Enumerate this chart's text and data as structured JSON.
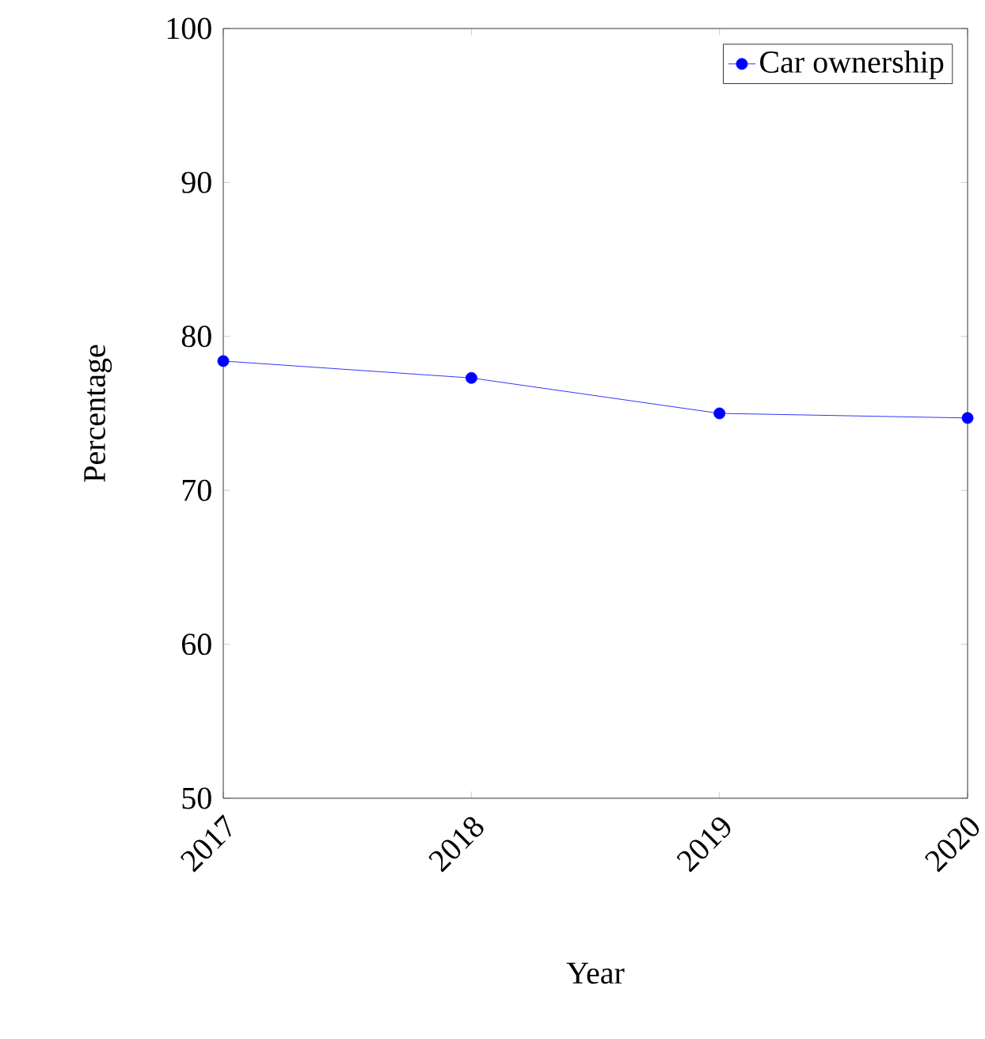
{
  "chart_data": {
    "type": "line",
    "xlabel": "Year",
    "ylabel": "Percentage",
    "x": [
      2017,
      2018,
      2019,
      2020
    ],
    "series": [
      {
        "name": "Car ownership",
        "color": "#0000ff",
        "values": [
          78.4,
          77.3,
          75.0,
          74.7
        ]
      }
    ],
    "xlim": [
      2017,
      2020
    ],
    "ylim": [
      50,
      100
    ],
    "xticks": [
      2017,
      2018,
      2019,
      2020
    ],
    "yticks": [
      50,
      60,
      70,
      80,
      90,
      100
    ],
    "legend": "top right",
    "marker": "circle",
    "line_style": "solid",
    "grid": false
  }
}
